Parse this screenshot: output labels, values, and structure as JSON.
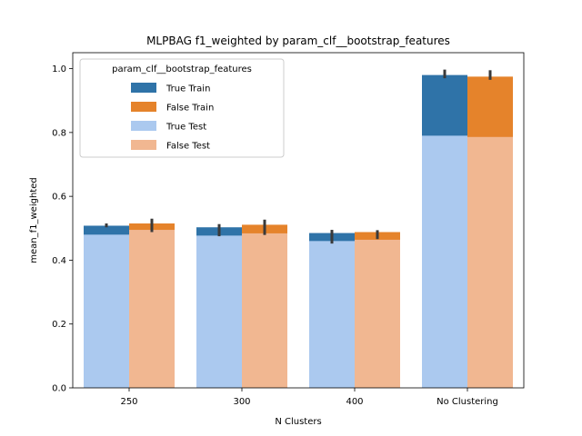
{
  "chart_data": {
    "type": "bar",
    "title": "MLPBAG f1_weighted by param_clf__bootstrap_features",
    "xlabel": "N Clusters",
    "ylabel": "mean_f1_weighted",
    "categories": [
      "250",
      "300",
      "400",
      "No Clustering"
    ],
    "ylim": [
      0,
      1.05
    ],
    "yticks": [
      "0.0",
      "0.2",
      "0.4",
      "0.6",
      "0.8",
      "1.0"
    ],
    "grid": false,
    "legend": {
      "title": "param_clf__bootstrap_features",
      "placement": "upper-left"
    },
    "series": [
      {
        "name": "True Train",
        "group": "True",
        "color": "#2f73a8",
        "values": [
          0.508,
          0.503,
          0.485,
          0.98
        ],
        "err_low": [
          0.503,
          0.475,
          0.452,
          0.97
        ],
        "err_high": [
          0.515,
          0.513,
          0.495,
          0.997
        ]
      },
      {
        "name": "False Train",
        "group": "False",
        "color": "#e5832b",
        "values": [
          0.515,
          0.511,
          0.488,
          0.975
        ],
        "err_low": [
          0.488,
          0.479,
          0.466,
          0.965
        ],
        "err_high": [
          0.53,
          0.527,
          0.494,
          0.995
        ]
      },
      {
        "name": "True Test",
        "group": "True",
        "color": "#abc9ef",
        "values": [
          0.48,
          0.477,
          0.46,
          0.79
        ],
        "err_low": [],
        "err_high": []
      },
      {
        "name": "False Test",
        "group": "False",
        "color": "#f1b791",
        "values": [
          0.495,
          0.484,
          0.464,
          0.786
        ],
        "err_low": [],
        "err_high": []
      }
    ]
  }
}
